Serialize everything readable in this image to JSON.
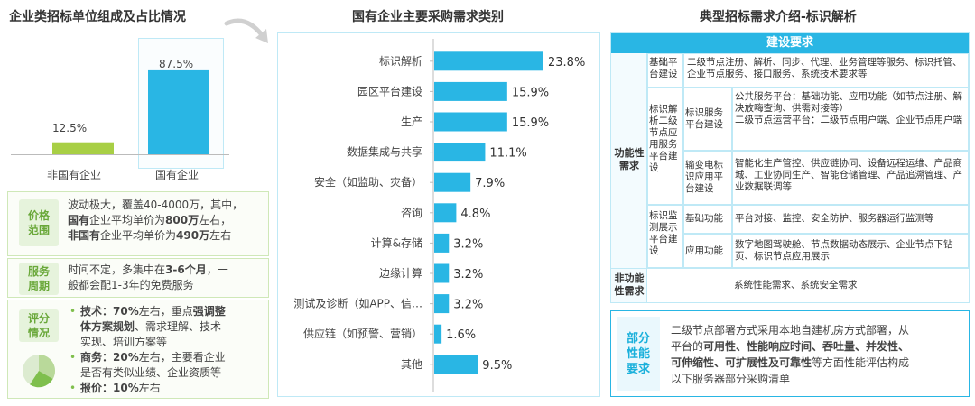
{
  "left": {
    "title": "企业类招标单位组成及占比情况",
    "bars": [
      {
        "label": "非国有企业",
        "value_text": "12.5%",
        "value": 12.5,
        "color": "#a8cf45"
      },
      {
        "label": "国有企业",
        "value_text": "87.5%",
        "value": 87.5,
        "color": "#29b6e4"
      }
    ],
    "info": [
      {
        "label": "价格\n范围",
        "lines": [
          [
            {
              "t": "波动极大，覆盖40-4000万，其中，",
              "b": false
            }
          ],
          [
            {
              "t": "国有",
              "b": true
            },
            {
              "t": "企业平均单价为",
              "b": false
            },
            {
              "t": "800万",
              "b": true
            },
            {
              "t": "左右，",
              "b": false
            }
          ],
          [
            {
              "t": "非国有",
              "b": true
            },
            {
              "t": "企业平均单价为",
              "b": false
            },
            {
              "t": "490万",
              "b": true
            },
            {
              "t": "左右",
              "b": false
            }
          ]
        ]
      },
      {
        "label": "服务\n周期",
        "lines": [
          [
            {
              "t": "时间不定，多集中在",
              "b": false
            },
            {
              "t": "3-6个月",
              "b": true
            },
            {
              "t": "，一",
              "b": false
            }
          ],
          [
            {
              "t": "般都会配1-3年的免费服务",
              "b": false
            }
          ]
        ]
      },
      {
        "label": "评分\n情况",
        "bullets": [
          [
            {
              "t": "技术：70%",
              "b": true
            },
            {
              "t": "左右，重点",
              "b": false
            },
            {
              "t": "强调整",
              "b": true
            }
          ],
          [
            {
              "t": "体方案规划",
              "b": true
            },
            {
              "t": "、需求理解、技术",
              "b": false
            }
          ],
          [
            {
              "t": "实现、培训方案等",
              "b": false
            }
          ],
          [
            {
              "t": "商务：20%",
              "b": true
            },
            {
              "t": "左右，主要看企业",
              "b": false
            }
          ],
          [
            {
              "t": "是否有类似业绩、企业资质等",
              "b": false
            }
          ],
          [
            {
              "t": "报价：10%",
              "b": true
            },
            {
              "t": "左右",
              "b": false
            }
          ]
        ]
      }
    ]
  },
  "chart_data": {
    "type": "bar",
    "title": "国有企业主要采购需求类别",
    "orientation": "horizontal",
    "categories": [
      "标识解析",
      "园区平台建设",
      "生产",
      "数据集成与共享",
      "安全（如监助、灾备）",
      "咨询",
      "计算&存储",
      "边缘计算",
      "测试及诊断（如APP、信…",
      "供应链（如预警、营销）",
      "其他"
    ],
    "values": [
      23.8,
      15.9,
      15.9,
      11.1,
      7.9,
      4.8,
      3.2,
      3.2,
      3.2,
      1.6,
      9.5
    ],
    "value_labels": [
      "23.8%",
      "15.9%",
      "15.9%",
      "11.1%",
      "7.9%",
      "4.8%",
      "3.2%",
      "3.2%",
      "3.2%",
      "1.6%",
      "9.5%"
    ],
    "bar_color": "#29b6e4"
  },
  "right": {
    "title": "典型招标需求介绍-标识解析",
    "header": "建设要求",
    "func_label": "功能性\n需求",
    "nonfunc_label": "非功能\n性需求",
    "nonfunc_text": "系统性能需求、系统安全需求",
    "rows": {
      "r1_a": "基础平\n台建设",
      "r1_text": "二级节点注册、解析、同步、代理、业务管理等服务、标识托管、企业节点服务、接口服务、系统技术要求等",
      "r2_a": "标识解\n析二级\n节点应\n用服务\n平台建\n设",
      "r2_b1": "标识服务\n平台建设",
      "r2_t1": "公共服务平台：基础功能、应用功能（如节点注册、解决放嗨查询、供需对接等）\n二级节点运营平台：二级节点用户端、企业节点用户端",
      "r2_b2": "输变电标\n识应用平\n台建设",
      "r2_t2": "智能化生产管控、供应链协同、设备远程运维、产品商城、工业协同生产、智能仓储管理、产品追溯管理、产业数据联调等",
      "r3_a": "标识监\n测展示\n平台建\n设",
      "r3_b1": "基础功能",
      "r3_t1": "平台对接、监控、安全防护、服务器运行监测等",
      "r3_b2": "应用功能",
      "r3_t2": "数字地图驾驶舱、节点数据动态展示、企业节点下钻页、标识节点应用展示"
    },
    "perf_label": "部分\n性能\n要求",
    "perf_lines": [
      [
        {
          "t": "二级节点部署方式采用本地自建机房方式部署，从",
          "b": false
        }
      ],
      [
        {
          "t": "平台的",
          "b": false
        },
        {
          "t": "可用性、性能响应时间、吞吐量、并发性、",
          "b": true
        }
      ],
      [
        {
          "t": "可伸缩性、可扩展性及可靠性",
          "b": true
        },
        {
          "t": "等方面性能评估构成",
          "b": false
        }
      ],
      [
        {
          "t": "以下服务器部分采购清单",
          "b": false
        }
      ]
    ]
  }
}
